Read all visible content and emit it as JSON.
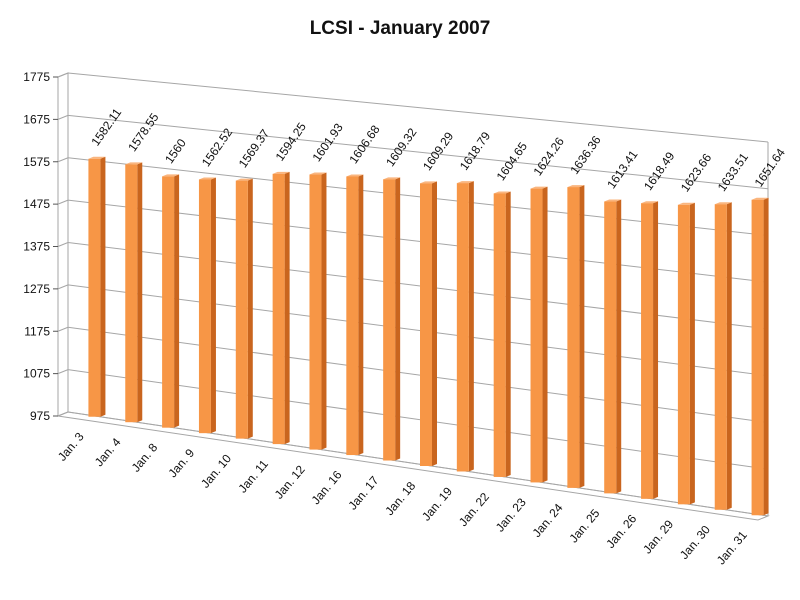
{
  "chart_data": {
    "type": "bar",
    "title": "LCSI - January 2007",
    "xlabel": "",
    "ylabel": "",
    "categories": [
      "Jan. 3",
      "Jan. 4",
      "Jan. 8",
      "Jan. 9",
      "Jan. 10",
      "Jan. 11",
      "Jan. 12",
      "Jan. 16",
      "Jan. 17",
      "Jan. 18",
      "Jan. 19",
      "Jan. 22",
      "Jan. 23",
      "Jan. 24",
      "Jan. 25",
      "Jan. 26",
      "Jan. 29",
      "Jan. 30",
      "Jan. 31"
    ],
    "values": [
      1582.11,
      1578.55,
      1560,
      1562.52,
      1569.37,
      1594.25,
      1601.93,
      1606.68,
      1609.32,
      1609.29,
      1618.79,
      1604.65,
      1624.26,
      1636.36,
      1613.41,
      1618.49,
      1623.66,
      1633.51,
      1651.64
    ],
    "value_labels": [
      "1582.11",
      "1578.55",
      "1560",
      "1562.52",
      "1569.37",
      "1594.25",
      "1601.93",
      "1606.68",
      "1609.32",
      "1609.29",
      "1618.79",
      "1604.65",
      "1624.26",
      "1636.36",
      "1613.41",
      "1618.49",
      "1623.66",
      "1633.51",
      "1651.64"
    ],
    "yticks": [
      "975",
      "1075",
      "1175",
      "1275",
      "1375",
      "1475",
      "1575",
      "1675",
      "1775"
    ],
    "ylim": [
      975,
      1775
    ],
    "grid": true,
    "legend": "none",
    "style": "3d-column",
    "colors": {
      "bar_front": "#F79646",
      "bar_side": "#C9651E",
      "bar_top": "#FAB57E",
      "grid": "#A6A6A6"
    }
  }
}
